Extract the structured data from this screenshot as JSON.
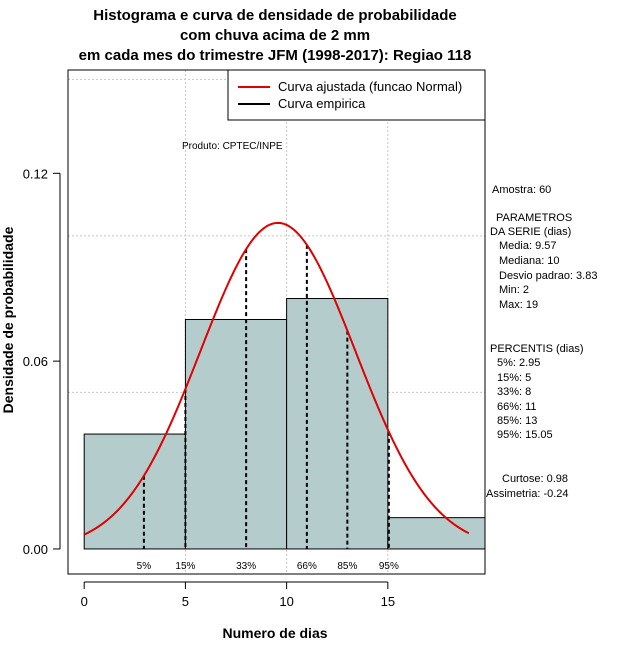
{
  "chart_data": {
    "type": "bar",
    "title_lines": [
      "Histograma e curva de densidade de probabilidade",
      "com chuva acima de 2 mm",
      "em cada mes do trimestre JFM (1998-2017): Regiao 118"
    ],
    "xlabel": "Numero de dias",
    "ylabel": "Densidade de probabilidade",
    "xlim": [
      -0.8,
      19.8
    ],
    "ylim": [
      -0.008,
      0.153
    ],
    "x_ticks": [
      0,
      5,
      10,
      15
    ],
    "y_ticks": [
      0.0,
      0.06,
      0.12
    ],
    "y_tick_labels": [
      "0.00",
      "0.06",
      "0.12"
    ],
    "grid": true,
    "grid_x": [
      5,
      10,
      15
    ],
    "grid_y": [
      0.05,
      0.1,
      0.15
    ],
    "bins": [
      {
        "from": 0,
        "to": 5,
        "density": 0.0367
      },
      {
        "from": 5,
        "to": 10,
        "density": 0.0733
      },
      {
        "from": 10,
        "to": 15,
        "density": 0.08
      },
      {
        "from": 15,
        "to": 20,
        "density": 0.01
      }
    ],
    "bar_color": "#b4cccc",
    "normal_curve": {
      "name": "Curva ajustada (funcao Normal)",
      "mean": 9.57,
      "sd": 3.83,
      "x_range": [
        0,
        19
      ],
      "color": "#e00000"
    },
    "empirical_curve": {
      "name": "Curva empirica",
      "color": "#000000"
    },
    "percentile_markers": [
      {
        "label": "5%",
        "x": 2.95
      },
      {
        "label": "15%",
        "x": 5
      },
      {
        "label": "33%",
        "x": 8
      },
      {
        "label": "66%",
        "x": 11
      },
      {
        "label": "85%",
        "x": 13
      },
      {
        "label": "95%",
        "x": 15.05
      }
    ],
    "legend_position": "top-right",
    "annotation": "Produto: CPTEC/INPE"
  },
  "stats": {
    "amostra": "Amostra: 60",
    "parametros_title": "PARAMETROS",
    "parametros_sub": "DA SERIE (dias)",
    "media": "Media: 9.57",
    "mediana": "Mediana: 10",
    "desvio": "Desvio padrao: 3.83",
    "min": "Min: 2",
    "max": "Max: 19",
    "percentis_title": "PERCENTIS (dias)",
    "p5": "5%: 2.95",
    "p15": "15%: 5",
    "p33": "33%: 8",
    "p66": "66%: 11",
    "p85": "85%: 13",
    "p95": "95%: 15.05",
    "curtose": "Curtose: 0.98",
    "assimetria": "Assimetria: -0.24"
  }
}
